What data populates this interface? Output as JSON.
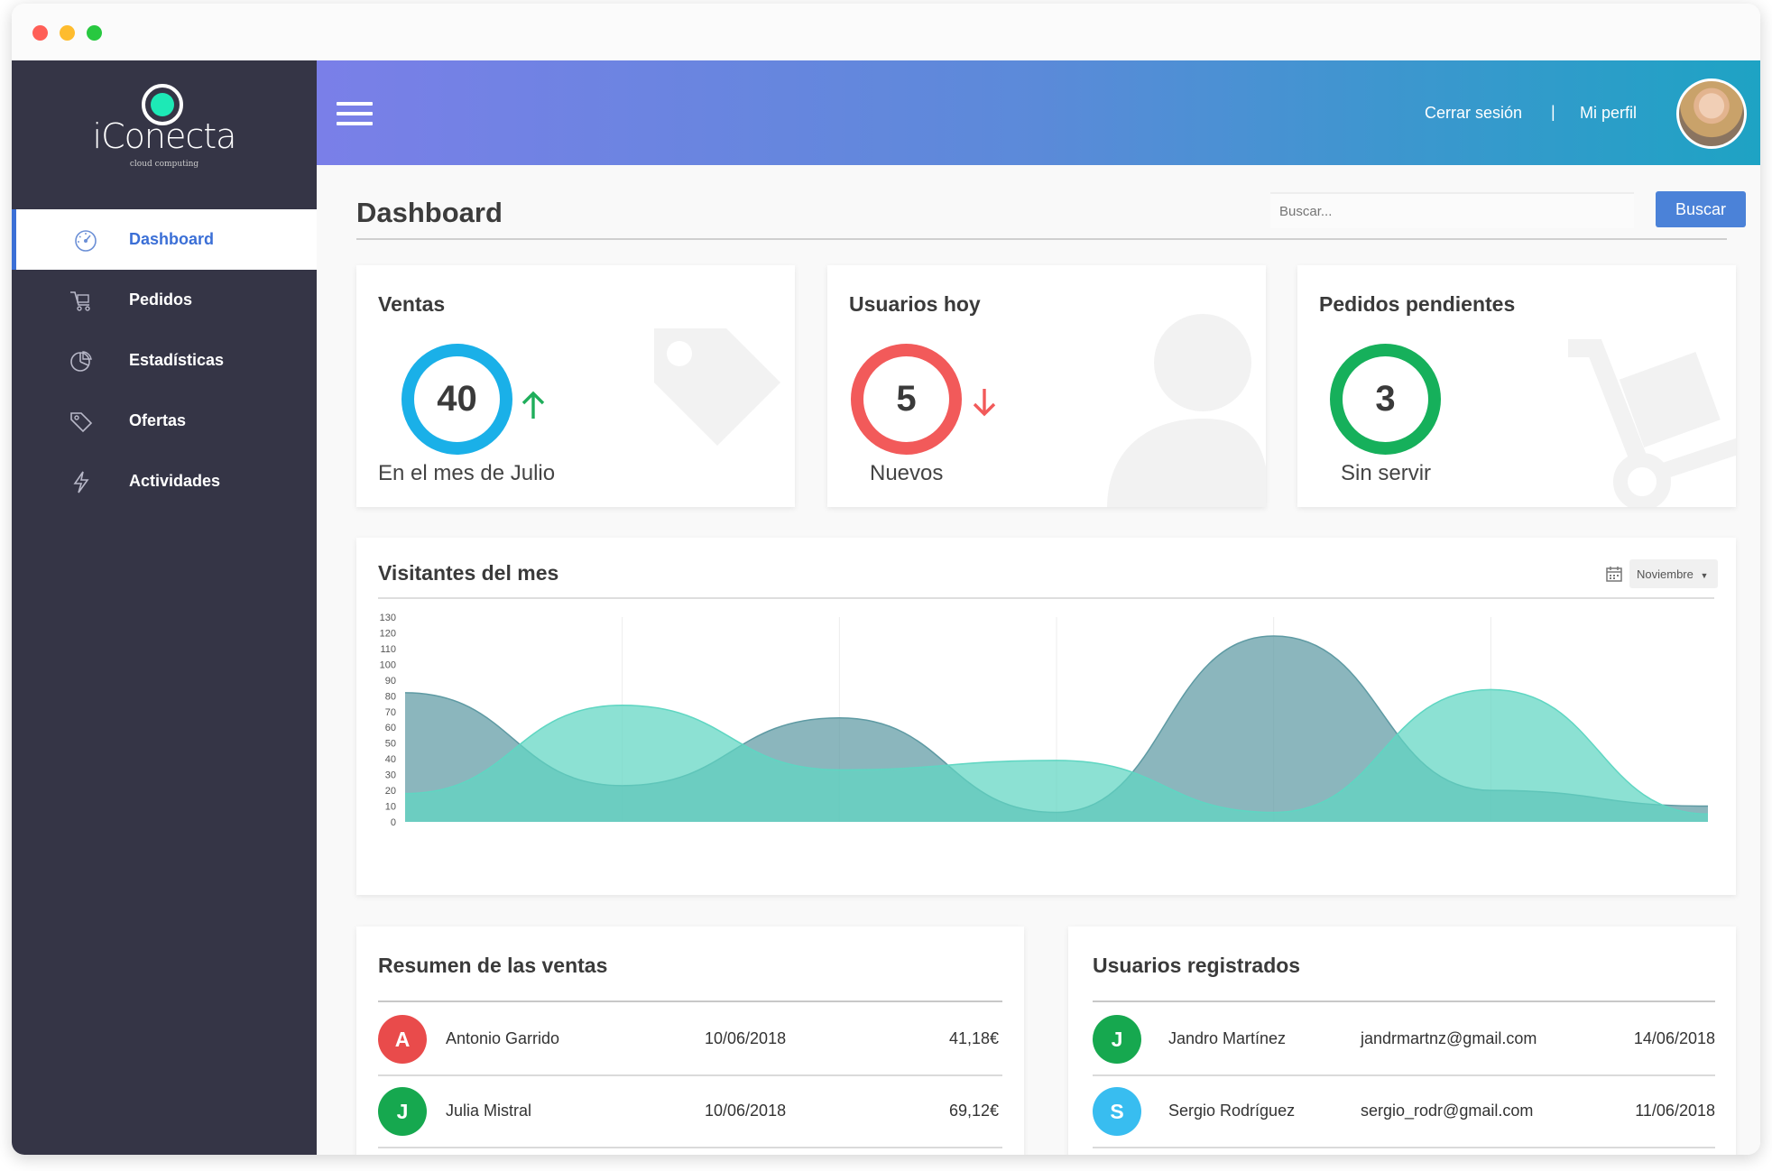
{
  "app": {
    "logo_text": "iConecta",
    "logo_sub": "cloud computing",
    "accent": "#3b6fd6",
    "sidebar_bg": "#353546"
  },
  "sidebar": {
    "items": [
      {
        "label": "Dashboard",
        "icon": "gauge-icon",
        "active": true
      },
      {
        "label": "Pedidos",
        "icon": "cart-icon",
        "active": false
      },
      {
        "label": "Estadísticas",
        "icon": "pie-chart-icon",
        "active": false
      },
      {
        "label": "Ofertas",
        "icon": "tag-icon",
        "active": false
      },
      {
        "label": "Actividades",
        "icon": "lightning-icon",
        "active": false
      }
    ]
  },
  "header": {
    "logout_label": "Cerrar sesión",
    "separator": "|",
    "profile_label": "Mi perfil"
  },
  "main": {
    "title": "Dashboard",
    "search_placeholder": "Buscar...",
    "search_button": "Buscar"
  },
  "stats": [
    {
      "title": "Ventas",
      "value": "40",
      "caption": "En el mes de Julio",
      "color": "#1ab0e8",
      "trend": "up",
      "trend_color": "#1fae5b"
    },
    {
      "title": "Usuarios hoy",
      "value": "5",
      "caption": "Nuevos",
      "color": "#f25a5a",
      "trend": "down",
      "trend_color": "#f25a5a"
    },
    {
      "title": "Pedidos pendientes",
      "value": "3",
      "caption": "Sin servir",
      "color": "#16b05b",
      "trend": "none"
    }
  ],
  "visitors": {
    "title": "Visitantes del mes",
    "month_label": "Noviembre",
    "chart_data": {
      "type": "area",
      "ylim": [
        0,
        130
      ],
      "yticks": [
        "0",
        "10",
        "20",
        "30",
        "40",
        "50",
        "60",
        "70",
        "80",
        "90",
        "100",
        "110",
        "120",
        "130"
      ],
      "grid": true,
      "legend": "none",
      "series": [
        {
          "color": "#5e9aa3",
          "values": [
            [
              0,
              82
            ],
            [
              1,
              23
            ],
            [
              2,
              66
            ],
            [
              3,
              6
            ],
            [
              4,
              118
            ],
            [
              5,
              20
            ],
            [
              6,
              10
            ]
          ]
        },
        {
          "color": "#5fd6c2",
          "values": [
            [
              0,
              18
            ],
            [
              1,
              74
            ],
            [
              2,
              33
            ],
            [
              3,
              39
            ],
            [
              4,
              6
            ],
            [
              5,
              84
            ],
            [
              6,
              5
            ]
          ]
        }
      ]
    }
  },
  "sales_summary": {
    "title": "Resumen de las ventas",
    "rows": [
      {
        "initial": "A",
        "color": "#e94b4b",
        "name": "Antonio Garrido",
        "date": "10/06/2018",
        "amount": "41,18€"
      },
      {
        "initial": "J",
        "color": "#16a84f",
        "name": "Julia Mistral",
        "date": "10/06/2018",
        "amount": "69,12€"
      }
    ]
  },
  "registered_users": {
    "title": "Usuarios registrados",
    "rows": [
      {
        "initial": "J",
        "color": "#16a84f",
        "name": "Jandro Martínez",
        "email": "jandrmartnz@gmail.com",
        "date": "14/06/2018"
      },
      {
        "initial": "S",
        "color": "#38bdf0",
        "name": "Sergio Rodríguez",
        "email": "sergio_rodr@gmail.com",
        "date": "11/06/2018"
      }
    ]
  }
}
